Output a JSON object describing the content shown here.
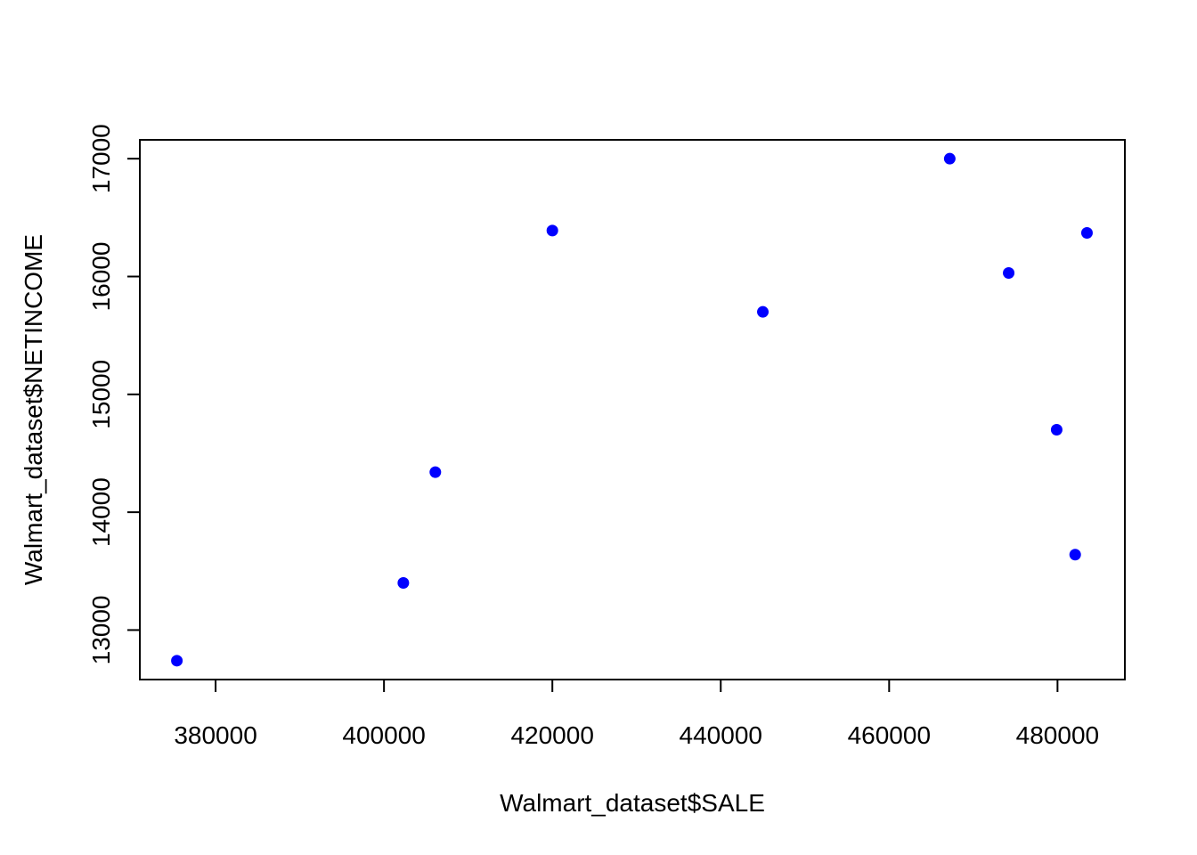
{
  "chart_data": {
    "type": "scatter",
    "title": "",
    "xlabel": "Walmart_dataset$SALE",
    "ylabel": "Walmart_dataset$NETINCOME",
    "xlim": [
      371000,
      488000
    ],
    "ylim": [
      12580,
      17160
    ],
    "x_ticks": [
      380000,
      400000,
      420000,
      440000,
      460000,
      480000
    ],
    "x_tick_labels": [
      "380000",
      "400000",
      "420000",
      "440000",
      "460000",
      "480000"
    ],
    "y_ticks": [
      13000,
      14000,
      15000,
      16000,
      17000
    ],
    "y_tick_labels": [
      "13000",
      "14000",
      "15000",
      "16000",
      "17000"
    ],
    "grid": false,
    "point_color": "#0000ff",
    "series": [
      {
        "points": [
          {
            "x": 375400,
            "y": 12740
          },
          {
            "x": 402300,
            "y": 13400
          },
          {
            "x": 406100,
            "y": 14340
          },
          {
            "x": 420000,
            "y": 16390
          },
          {
            "x": 445000,
            "y": 15700
          },
          {
            "x": 467200,
            "y": 17000
          },
          {
            "x": 474200,
            "y": 16030
          },
          {
            "x": 479900,
            "y": 14700
          },
          {
            "x": 482100,
            "y": 13640
          },
          {
            "x": 483500,
            "y": 16370
          }
        ]
      }
    ]
  }
}
